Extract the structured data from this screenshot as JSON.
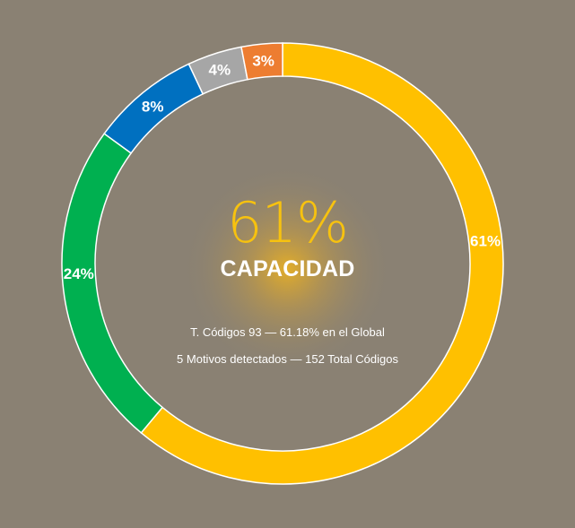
{
  "chart_data": {
    "type": "pie",
    "variant": "donut",
    "start": "top",
    "direction": "clockwise",
    "slices": [
      {
        "label": "61%",
        "value": 61.18,
        "color": "#ffc000"
      },
      {
        "label": "24%",
        "value": 24,
        "color": "#00b050"
      },
      {
        "label": "8%",
        "value": 8,
        "color": "#0070c0"
      },
      {
        "label": "4%",
        "value": 4,
        "color": "#a6a6a6"
      },
      {
        "label": "3%",
        "value": 3,
        "color": "#ed7d31"
      }
    ],
    "center": {
      "value": "61%",
      "label": "CAPACIDAD",
      "line1": "T. Códigos 93 — 61.18% en el Global",
      "line2": "5 Motivos detectados — 152 Total Códigos"
    },
    "colors": {
      "background": "#8a8173",
      "glow": "#f2b51c",
      "center_value": "#f7c20f",
      "slice_border": "#ffffff"
    }
  }
}
